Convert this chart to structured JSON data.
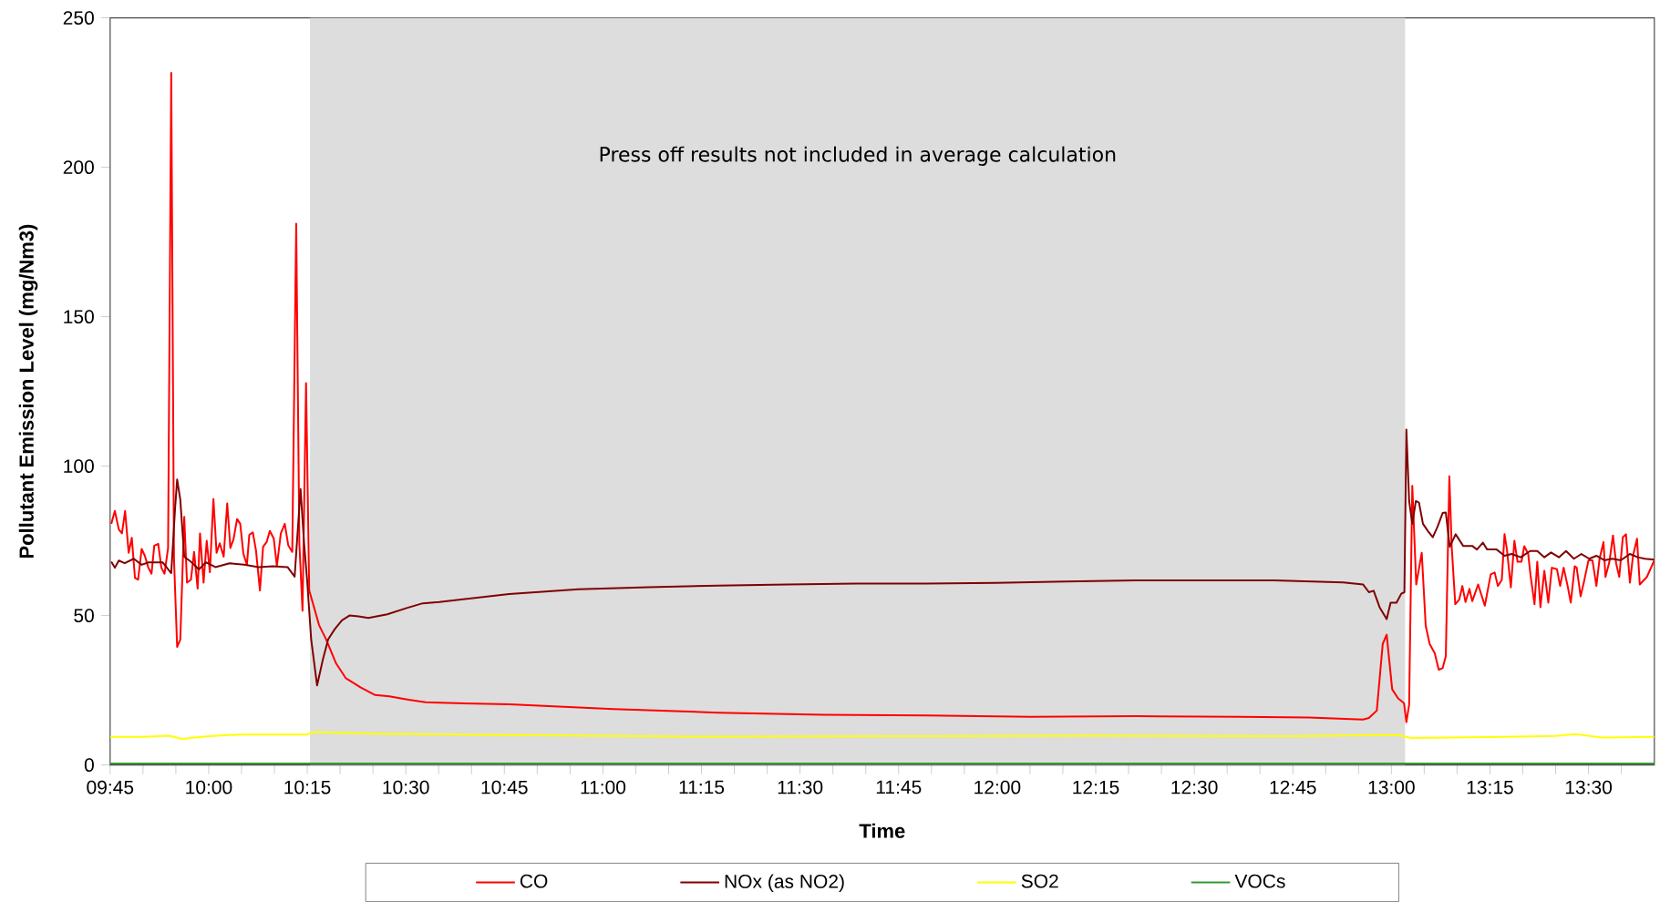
{
  "chart_data": {
    "type": "line",
    "xlabel": "Time",
    "ylabel": "Pollutant Emission Level (mg/Nm3)",
    "xlim": [
      9.75,
      13.667
    ],
    "ylim": [
      0,
      250
    ],
    "xticks": [
      {
        "value": 9.75,
        "label": "09:45"
      },
      {
        "value": 9.8333,
        "label": null
      },
      {
        "value": 9.9167,
        "label": null
      },
      {
        "value": 10,
        "label": "10:00"
      },
      {
        "value": 10.0833,
        "label": null
      },
      {
        "value": 10.1667,
        "label": null
      },
      {
        "value": 10.25,
        "label": "10:15"
      },
      {
        "value": 10.3333,
        "label": null
      },
      {
        "value": 10.4167,
        "label": null
      },
      {
        "value": 10.5,
        "label": "10:30"
      },
      {
        "value": 10.5833,
        "label": null
      },
      {
        "value": 10.6667,
        "label": null
      },
      {
        "value": 10.75,
        "label": "10:45"
      },
      {
        "value": 10.8333,
        "label": null
      },
      {
        "value": 10.9167,
        "label": null
      },
      {
        "value": 11,
        "label": "11:00"
      },
      {
        "value": 11.0833,
        "label": null
      },
      {
        "value": 11.1667,
        "label": null
      },
      {
        "value": 11.25,
        "label": "11:15"
      },
      {
        "value": 11.3333,
        "label": null
      },
      {
        "value": 11.4167,
        "label": null
      },
      {
        "value": 11.5,
        "label": "11:30"
      },
      {
        "value": 11.5833,
        "label": null
      },
      {
        "value": 11.6667,
        "label": null
      },
      {
        "value": 11.75,
        "label": "11:45"
      },
      {
        "value": 11.8333,
        "label": null
      },
      {
        "value": 11.9167,
        "label": null
      },
      {
        "value": 12,
        "label": "12:00"
      },
      {
        "value": 12.0833,
        "label": null
      },
      {
        "value": 12.1667,
        "label": null
      },
      {
        "value": 12.25,
        "label": "12:15"
      },
      {
        "value": 12.3333,
        "label": null
      },
      {
        "value": 12.4167,
        "label": null
      },
      {
        "value": 12.5,
        "label": "12:30"
      },
      {
        "value": 12.5833,
        "label": null
      },
      {
        "value": 12.6667,
        "label": null
      },
      {
        "value": 12.75,
        "label": "12:45"
      },
      {
        "value": 12.8333,
        "label": null
      },
      {
        "value": 12.9167,
        "label": null
      },
      {
        "value": 13,
        "label": "13:00"
      },
      {
        "value": 13.0833,
        "label": null
      },
      {
        "value": 13.1667,
        "label": null
      },
      {
        "value": 13.25,
        "label": "13:15"
      },
      {
        "value": 13.3333,
        "label": null
      },
      {
        "value": 13.4167,
        "label": null
      },
      {
        "value": 13.5,
        "label": "13:30"
      },
      {
        "value": 13.5833,
        "label": null
      }
    ],
    "yticks": [
      0,
      50,
      100,
      150,
      200,
      250
    ],
    "bands": [
      {
        "axis": "x",
        "from": 10.257,
        "to": 13.035,
        "label": "Press off results not included in average calculation",
        "color": "#dddddd"
      }
    ],
    "legend": "bottom",
    "series": [
      {
        "name": "CO",
        "color": "#ff0000",
        "x": [
          9.753,
          9.762,
          9.772,
          9.78,
          9.788,
          9.797,
          9.805,
          9.813,
          9.821,
          9.83,
          9.838,
          9.847,
          9.855,
          9.862,
          9.872,
          9.88,
          9.888,
          9.897,
          9.905,
          9.912,
          9.92,
          9.928,
          9.938,
          9.945,
          9.955,
          9.963,
          9.972,
          9.978,
          9.987,
          9.995,
          10.003,
          10.012,
          10.02,
          10.028,
          10.038,
          10.047,
          10.055,
          10.063,
          10.072,
          10.08,
          10.088,
          10.097,
          10.103,
          10.112,
          10.12,
          10.13,
          10.138,
          10.147,
          10.155,
          10.165,
          10.173,
          10.183,
          10.193,
          10.202,
          10.212,
          10.222,
          10.23,
          10.238,
          10.247,
          10.255,
          10.28,
          10.298,
          10.323,
          10.348,
          10.385,
          10.422,
          10.458,
          10.507,
          10.55,
          10.585,
          10.762,
          11.027,
          11.292,
          11.557,
          11.82,
          12.085,
          12.35,
          12.615,
          12.79,
          12.928,
          12.943,
          12.963,
          12.978,
          12.988,
          13.002,
          13.017,
          13.032,
          13.038,
          13.045,
          13.053,
          13.063,
          13.077,
          13.087,
          13.097,
          13.11,
          13.12,
          13.13,
          13.138,
          13.147,
          13.153,
          13.162,
          13.172,
          13.18,
          13.188,
          13.198,
          13.205,
          13.22,
          13.237,
          13.252,
          13.262,
          13.27,
          13.28,
          13.287,
          13.293,
          13.303,
          13.312,
          13.32,
          13.33,
          13.337,
          13.347,
          13.353,
          13.363,
          13.37,
          13.378,
          13.388,
          13.398,
          13.407,
          13.42,
          13.428,
          13.437,
          13.447,
          13.455,
          13.465,
          13.47,
          13.48,
          13.488,
          13.5,
          13.51,
          13.52,
          13.528,
          13.538,
          13.543,
          13.553,
          13.562,
          13.57,
          13.578,
          13.587,
          13.595,
          13.605,
          13.613,
          13.623,
          13.63,
          13.648,
          13.667
        ],
        "values": [
          80.7,
          85,
          78.8,
          77.5,
          85,
          71,
          76,
          62.6,
          62,
          72.3,
          70,
          66,
          64,
          73.4,
          74,
          66,
          64,
          72.6,
          231.6,
          69,
          39.5,
          42,
          83,
          61,
          62,
          71.3,
          59,
          77.5,
          61,
          75,
          64.5,
          89,
          71,
          74.2,
          69.7,
          87.5,
          72.6,
          75.5,
          82.3,
          80.7,
          70.7,
          67,
          77,
          77.8,
          71.8,
          58.4,
          73,
          74.6,
          78.3,
          75.8,
          66.5,
          77.5,
          80.7,
          73.4,
          71.3,
          181.1,
          74.2,
          51.6,
          127.8,
          58.4,
          46.8,
          42,
          34,
          29,
          26,
          23.4,
          23,
          21.8,
          21,
          20.8,
          20.3,
          18.7,
          17.5,
          16.8,
          16.6,
          16.1,
          16.3,
          16.1,
          15.9,
          15.2,
          15.7,
          18.2,
          40.5,
          43.6,
          25.3,
          22.3,
          20.7,
          14.3,
          20.2,
          93.4,
          60.4,
          71,
          46.6,
          40.5,
          37.4,
          31.9,
          32.4,
          36.4,
          96.6,
          73,
          53.8,
          55.3,
          59.9,
          54.5,
          58.9,
          54.8,
          60.4,
          53.3,
          63.8,
          64.4,
          59.9,
          61.9,
          77.2,
          72.1,
          59.4,
          75,
          68,
          68,
          73.2,
          70.6,
          63.4,
          53.8,
          68,
          52.8,
          65,
          54.3,
          66,
          65.5,
          59.9,
          66,
          59.9,
          54.3,
          66.5,
          66,
          56.4,
          61,
          68.5,
          68.5,
          59.9,
          69,
          74.6,
          62.9,
          68,
          76.8,
          67.5,
          62.9,
          76.2,
          77.2,
          61,
          70.1,
          75.7,
          60.4,
          62.9,
          68.5
        ]
      },
      {
        "name": "NOx (as NO2)",
        "color": "#800000",
        "x": [
          9.753,
          9.762,
          9.772,
          9.787,
          9.81,
          9.83,
          9.847,
          9.883,
          9.905,
          9.915,
          9.92,
          9.928,
          9.938,
          9.957,
          9.975,
          9.993,
          10.017,
          10.053,
          10.09,
          10.127,
          10.163,
          10.2,
          10.218,
          10.233,
          10.242,
          10.25,
          10.26,
          10.275,
          10.29,
          10.303,
          10.32,
          10.338,
          10.357,
          10.38,
          10.405,
          10.453,
          10.502,
          10.543,
          10.585,
          10.762,
          10.938,
          11.115,
          11.292,
          11.468,
          11.643,
          11.82,
          11.997,
          12.173,
          12.35,
          12.527,
          12.703,
          12.878,
          12.928,
          12.943,
          12.955,
          12.97,
          12.988,
          12.998,
          13.013,
          13.025,
          13.033,
          13.038,
          13.045,
          13.053,
          13.062,
          13.07,
          13.08,
          13.093,
          13.105,
          13.117,
          13.13,
          13.138,
          13.148,
          13.163,
          13.182,
          13.205,
          13.217,
          13.232,
          13.243,
          13.267,
          13.287,
          13.305,
          13.328,
          13.352,
          13.37,
          13.388,
          13.405,
          13.425,
          13.443,
          13.463,
          13.482,
          13.502,
          13.52,
          13.54,
          13.56,
          13.582,
          13.605,
          13.625,
          13.643,
          13.667
        ],
        "values": [
          68,
          66,
          68.4,
          67.5,
          69,
          67,
          67.8,
          67.8,
          64.2,
          86.3,
          95.5,
          88.8,
          69.7,
          67.8,
          65.4,
          67.8,
          66.2,
          67.5,
          67,
          66.2,
          66.5,
          66.2,
          63,
          92.3,
          74.2,
          61.3,
          42,
          26.6,
          35.5,
          42,
          45.5,
          48.4,
          50,
          49.7,
          49.2,
          50.4,
          52.5,
          54.1,
          54.5,
          57.2,
          58.8,
          59.5,
          60,
          60.4,
          60.7,
          60.7,
          60.9,
          61.4,
          61.8,
          61.8,
          61.8,
          61.1,
          60.4,
          57.8,
          58.3,
          52.8,
          48.8,
          54.3,
          54.3,
          57.3,
          57.8,
          112.2,
          88.3,
          80.7,
          88.3,
          87.8,
          80.7,
          78.2,
          76.2,
          79.7,
          84.3,
          84.5,
          73,
          77.2,
          73.3,
          73.3,
          72.1,
          74.4,
          72.1,
          72.1,
          70,
          70.6,
          69.5,
          71.6,
          71.6,
          69.5,
          71.1,
          69.5,
          71.6,
          69,
          70.6,
          69,
          70,
          68.5,
          69,
          68.5,
          70.6,
          69.5,
          69,
          68.7
        ]
      },
      {
        "name": "SO2",
        "color": "#ffff00",
        "x": [
          9.75,
          9.833,
          9.9,
          9.933,
          10.0,
          10.083,
          10.25,
          10.267,
          10.417,
          10.75,
          11.25,
          11.75,
          12.25,
          12.75,
          13.017,
          13.05,
          13.25,
          13.417,
          13.467,
          13.533,
          13.667
        ],
        "values": [
          9.4,
          9.4,
          9.8,
          8.7,
          9.6,
          10.2,
          10.2,
          11,
          10.5,
          10,
          9.5,
          9.6,
          9.8,
          9.6,
          10,
          9,
          9.3,
          9.7,
          10.3,
          9.2,
          9.4
        ]
      },
      {
        "name": "VOCs",
        "color": "#339933",
        "x": [
          9.75,
          11.5,
          13.667
        ],
        "values": [
          0.5,
          0.5,
          0.5
        ]
      }
    ]
  }
}
